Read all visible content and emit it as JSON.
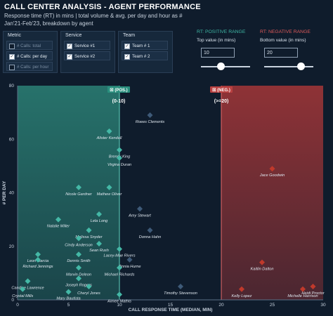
{
  "header": {
    "title": "CALL CENTER ANALYSIS - AGENT PERFORMANCE",
    "subtitle_line1": "Response time (RT) in mins | total volume & avg. per day and hour as #",
    "subtitle_line2": "Jan'21-Feb'23, breakdown by agent"
  },
  "filters": {
    "metric": {
      "title": "Metric",
      "options": [
        {
          "label": "# Calls: total",
          "checked": false
        },
        {
          "label": "# Calls: per day",
          "checked": true
        },
        {
          "label": "# Calls: per hour",
          "checked": false
        }
      ]
    },
    "service": {
      "title": "Service",
      "options": [
        {
          "label": "Service #1",
          "checked": true
        },
        {
          "label": "Service #2",
          "checked": true
        }
      ]
    },
    "team": {
      "title": "Team",
      "options": [
        {
          "label": "Team # 1",
          "checked": true
        },
        {
          "label": "Team # 2",
          "checked": true
        }
      ]
    }
  },
  "rt_positive": {
    "title": "RT: POSITIVE RANGE",
    "label": "Top value (in mins)",
    "value": "10",
    "slider_fraction": 0.4,
    "color": "#3fb8a5"
  },
  "rt_negative": {
    "title": "RT: NEGATIVE RANGE",
    "label": "Bottom value (in mins)",
    "value": "20",
    "slider_fraction": 0.75,
    "color": "#e05a5a"
  },
  "chart_data": {
    "type": "scatter",
    "xlabel": "CALL RESPONSE TIME (MEDIAN, MIN)",
    "ylabel": "# PER DAY",
    "xlim": [
      0,
      30
    ],
    "ylim": [
      0,
      80
    ],
    "xticks": [
      0,
      5,
      10,
      15,
      20,
      25,
      30
    ],
    "yticks": [
      0,
      20,
      40,
      60,
      80
    ],
    "grid": false,
    "positive_band": {
      "from": 0,
      "to": 10,
      "badge": "(POS.)",
      "range_label": "(0-10)",
      "color": "#2f8f80"
    },
    "negative_band": {
      "from": 20,
      "to": 30,
      "badge": "(NEG.)",
      "range_label": "(>=20)",
      "color": "#b93a3a"
    },
    "points": [
      {
        "name": "Roees Clements",
        "x": 13,
        "y": 69,
        "zone": "mid"
      },
      {
        "name": "Alister Kendall",
        "x": 9,
        "y": 63,
        "zone": "pos"
      },
      {
        "name": "Brendy King",
        "x": 10,
        "y": 56,
        "zone": "pos"
      },
      {
        "name": "Virgina Duran",
        "x": 10,
        "y": 53,
        "zone": "pos"
      },
      {
        "name": "Jace Goodwin",
        "x": 25,
        "y": 49,
        "zone": "neg"
      },
      {
        "name": "Mathew Oliver",
        "x": 9,
        "y": 42,
        "zone": "pos"
      },
      {
        "name": "Nicole Gardner",
        "x": 6,
        "y": 42,
        "zone": "pos"
      },
      {
        "name": "Amy Stewart",
        "x": 12,
        "y": 34,
        "zone": "mid"
      },
      {
        "name": "Natalie Miller",
        "x": 4,
        "y": 30,
        "zone": "pos"
      },
      {
        "name": "Lela Long",
        "x": 8,
        "y": 32,
        "zone": "pos"
      },
      {
        "name": "Donna Hahn",
        "x": 13,
        "y": 26,
        "zone": "mid"
      },
      {
        "name": "Melissa Snyder",
        "x": 7,
        "y": 26,
        "zone": "pos"
      },
      {
        "name": "Cindy Anderson",
        "x": 6,
        "y": 23,
        "zone": "pos"
      },
      {
        "name": "Sean Rush",
        "x": 8,
        "y": 21,
        "zone": "pos"
      },
      {
        "name": "Lacey-Mae Rivers",
        "x": 10,
        "y": 19,
        "zone": "pos"
      },
      {
        "name": "Leon Garcia",
        "x": 2,
        "y": 17,
        "zone": "pos"
      },
      {
        "name": "Dennis Smith",
        "x": 6,
        "y": 17,
        "zone": "pos"
      },
      {
        "name": "Richard Jennings",
        "x": 2,
        "y": 15,
        "zone": "pos"
      },
      {
        "name": "Zinnia Hurne",
        "x": 11,
        "y": 15,
        "zone": "mid"
      },
      {
        "name": "Marvin Deleon",
        "x": 6,
        "y": 12,
        "zone": "pos"
      },
      {
        "name": "Michael Richards",
        "x": 10,
        "y": 12,
        "zone": "pos"
      },
      {
        "name": "Kaitlin Dalton",
        "x": 24,
        "y": 14,
        "zone": "neg"
      },
      {
        "name": "Joseph Rogers",
        "x": 6,
        "y": 8,
        "zone": "pos"
      },
      {
        "name": "Candice Lawrence",
        "x": 1,
        "y": 7,
        "zone": "pos"
      },
      {
        "name": "Cheryl Jones",
        "x": 7,
        "y": 5,
        "zone": "pos"
      },
      {
        "name": "Crystal Mills",
        "x": 0.5,
        "y": 4,
        "zone": "pos"
      },
      {
        "name": "Mary Bautista",
        "x": 5,
        "y": 3,
        "zone": "pos"
      },
      {
        "name": "Aimee Mathis",
        "x": 10,
        "y": 2,
        "zone": "pos"
      },
      {
        "name": "Timothy Stevenson",
        "x": 16,
        "y": 5,
        "zone": "mid"
      },
      {
        "name": "Kelly Lopez",
        "x": 22,
        "y": 4,
        "zone": "neg"
      },
      {
        "name": "Michelle Harrison",
        "x": 28,
        "y": 4,
        "zone": "neg"
      },
      {
        "name": "Heidi Proctor",
        "x": 29,
        "y": 5,
        "zone": "neg"
      }
    ]
  }
}
